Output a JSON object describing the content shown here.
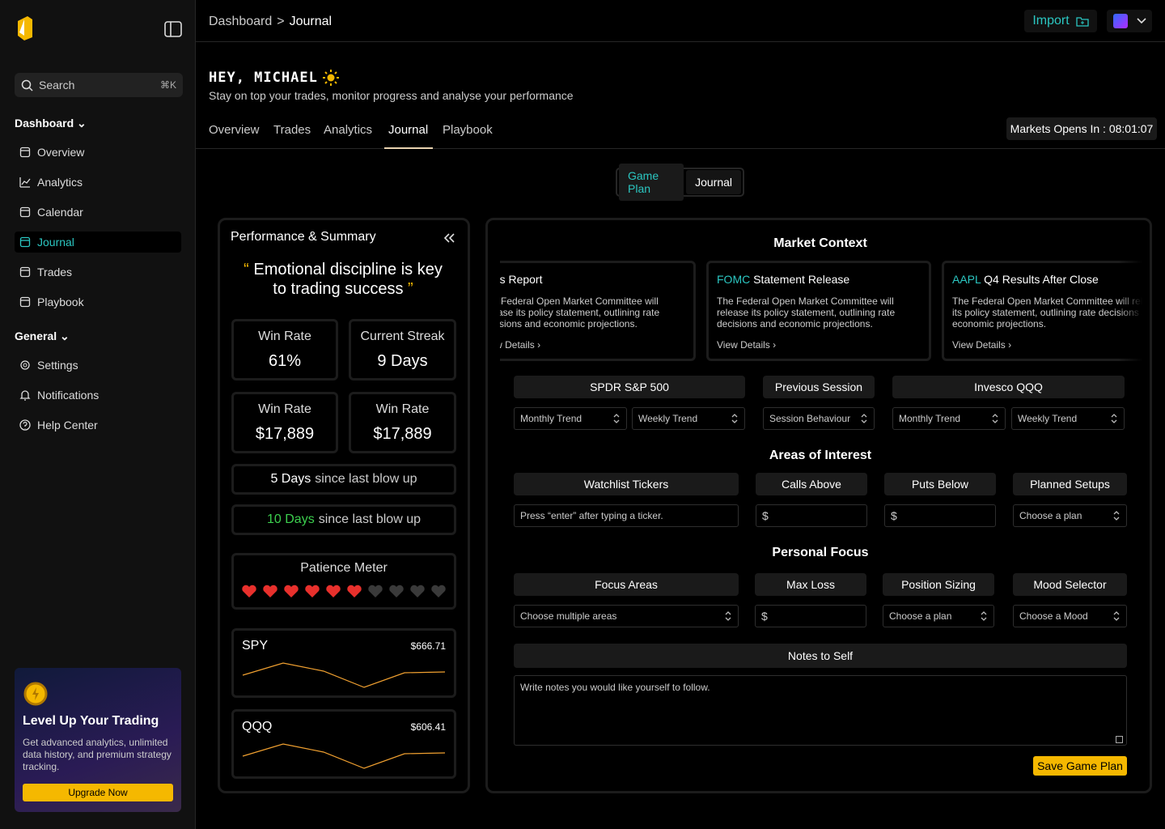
{
  "sidebar": {
    "search": "Search",
    "shortcut": "⌘K",
    "sections": [
      {
        "title": "Dashboard",
        "items": [
          "Overview",
          "Analytics",
          "Calendar",
          "Journal",
          "Trades",
          "Playbook"
        ]
      },
      {
        "title": "General",
        "items": [
          "Settings",
          "Notifications",
          "Help Center"
        ]
      }
    ],
    "promo": {
      "title": "Level Up Your Trading",
      "text": "Get advanced analytics, unlimited data history, and premium strategy tracking.",
      "button": "Upgrade Now"
    }
  },
  "header": {
    "breadcrumb": [
      "Dashboard",
      ">",
      "Journal"
    ],
    "import": "Import"
  },
  "greeting": {
    "title": "HEY, MICHAEL",
    "subtitle": "Stay on top your trades, monitor progress and analyse your performance"
  },
  "tabs": [
    "Overview",
    "Trades",
    "Analytics",
    "Journal",
    "Playbook"
  ],
  "market_timer": "Markets Opens In : 08:01:07",
  "toggle": [
    "Game Plan",
    "Journal"
  ],
  "performance": {
    "title": "Performance & Summary",
    "quote_open": "“",
    "quote": "Emotional discipline is key to trading success",
    "quote_close": "”",
    "stats": [
      {
        "label": "Win Rate",
        "value": "61%"
      },
      {
        "label": "Current Streak",
        "value": "9 Days"
      },
      {
        "label": "Win Rate",
        "value": "$17,889"
      },
      {
        "label": "Win Rate",
        "value": "$17,889"
      }
    ],
    "blowups": [
      {
        "days": "5 Days",
        "text": "since last blow up"
      },
      {
        "days": "10 Days",
        "text": "since last blow up"
      }
    ],
    "patience": "Patience Meter",
    "tickers": [
      {
        "symbol": "SPY",
        "price": "$666.71"
      },
      {
        "symbol": "QQQ",
        "price": "$606.41"
      }
    ]
  },
  "market_context": {
    "title": "Market Context",
    "events": [
      {
        "tag": "",
        "title": "Jobs Report",
        "text": "The Federal Open Market Committee will release its policy statement, outlining rate decisions and economic projections.",
        "link": "View Details"
      },
      {
        "tag": "FOMC",
        "title": "Statement Release",
        "text": "The Federal Open Market Committee will release its policy statement, outlining rate decisions and economic projections.",
        "link": "View Details"
      },
      {
        "tag": "AAPL",
        "title": "Q4 Results After Close",
        "text": "The Federal Open Market Committee will release its policy statement, outlining rate decisions and economic projections.",
        "link": "View Details"
      }
    ],
    "groups": [
      {
        "title": "SPDR S&P 500",
        "selects": [
          "Monthly Trend",
          "Weekly Trend"
        ]
      },
      {
        "title": "Previous Session",
        "selects": [
          "Session Behaviour"
        ]
      },
      {
        "title": "Invesco QQQ",
        "selects": [
          "Monthly Trend",
          "Weekly Trend"
        ]
      }
    ]
  },
  "areas_of_interest": {
    "title": "Areas of Interest",
    "fields": [
      {
        "label": "Watchlist Tickers",
        "placeholder": "Press “enter” after typing a ticker."
      },
      {
        "label": "Calls Above",
        "placeholder": "$"
      },
      {
        "label": "Puts Below",
        "placeholder": "$"
      },
      {
        "label": "Planned Setups",
        "placeholder": "Choose a plan"
      }
    ]
  },
  "personal_focus": {
    "title": "Personal Focus",
    "fields": [
      {
        "label": "Focus Areas",
        "placeholder": "Choose multiple areas"
      },
      {
        "label": "Max Loss",
        "placeholder": "$"
      },
      {
        "label": "Position Sizing",
        "placeholder": "Choose a plan"
      },
      {
        "label": "Mood Selector",
        "placeholder": "Choose a Mood"
      }
    ]
  },
  "notes": {
    "title": "Notes to Self",
    "placeholder": "Write notes you would like yourself to follow.",
    "button": "Save Game Plan"
  }
}
